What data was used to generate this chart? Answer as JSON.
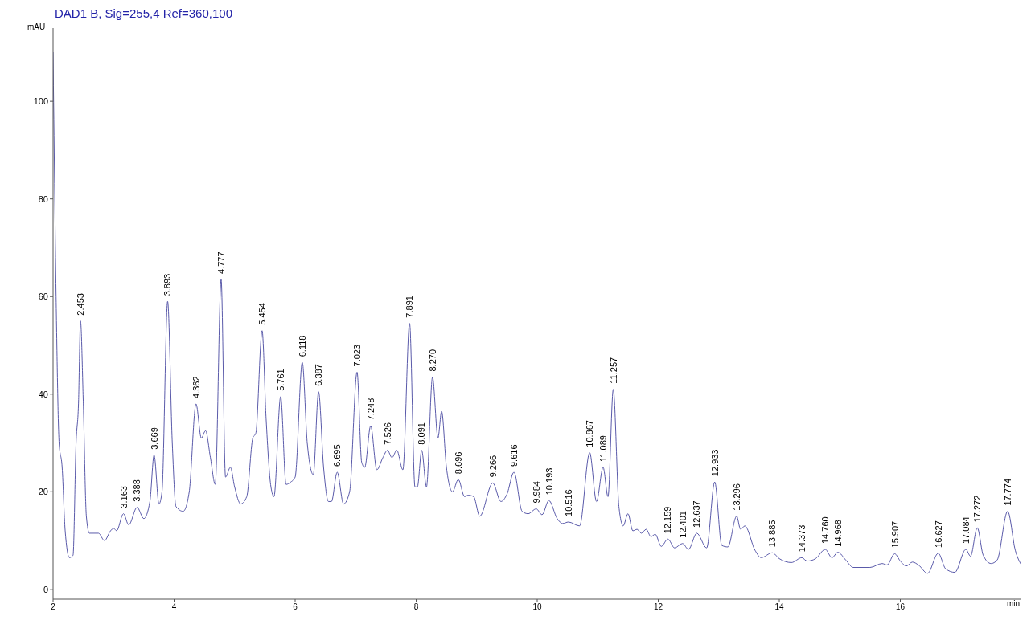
{
  "chart_data": {
    "type": "line",
    "title": "DAD1 B, Sig=255,4 Ref=360,100",
    "xlabel": "min",
    "ylabel": "mAU",
    "xlim": [
      2,
      18
    ],
    "xticks": [
      2,
      4,
      6,
      8,
      10,
      12,
      14,
      16
    ],
    "ylim": [
      -2,
      115
    ],
    "yticks": [
      0,
      20,
      40,
      60,
      80,
      100
    ],
    "grid": false,
    "legend": false,
    "marker": "none",
    "line_style": "solid",
    "x": [
      2.0,
      2.05,
      2.1,
      2.15,
      2.2,
      2.27,
      2.33,
      2.38,
      2.42,
      2.453,
      2.5,
      2.55,
      2.6,
      2.75,
      2.85,
      2.95,
      3.0,
      3.05,
      3.163,
      3.25,
      3.388,
      3.5,
      3.6,
      3.669,
      3.75,
      3.8,
      3.893,
      3.97,
      4.03,
      4.15,
      4.25,
      4.362,
      4.45,
      4.52,
      4.6,
      4.68,
      4.777,
      4.85,
      4.93,
      5.0,
      5.1,
      5.2,
      5.3,
      5.35,
      5.454,
      5.52,
      5.6,
      5.65,
      5.761,
      5.85,
      5.93,
      6.0,
      6.118,
      6.2,
      6.3,
      6.387,
      6.47,
      6.55,
      6.6,
      6.695,
      6.8,
      6.9,
      7.023,
      7.1,
      7.15,
      7.248,
      7.35,
      7.45,
      7.526,
      7.6,
      7.68,
      7.78,
      7.891,
      7.98,
      8.02,
      8.091,
      8.17,
      8.27,
      8.36,
      8.42,
      8.5,
      8.6,
      8.696,
      8.8,
      8.86,
      8.95,
      9.05,
      9.266,
      9.4,
      9.5,
      9.616,
      9.75,
      9.85,
      9.984,
      10.08,
      10.193,
      10.33,
      10.42,
      10.516,
      10.7,
      10.867,
      10.98,
      11.089,
      11.17,
      11.257,
      11.35,
      11.42,
      11.5,
      11.58,
      11.65,
      11.72,
      11.8,
      11.88,
      11.95,
      12.05,
      12.159,
      12.27,
      12.401,
      12.5,
      12.637,
      12.8,
      12.933,
      13.05,
      13.15,
      13.296,
      13.36,
      13.43,
      13.6,
      13.7,
      13.885,
      14.0,
      14.2,
      14.373,
      14.46,
      14.6,
      14.76,
      14.87,
      14.968,
      15.1,
      15.22,
      15.5,
      15.7,
      15.78,
      15.907,
      16.0,
      16.1,
      16.2,
      16.3,
      16.45,
      16.627,
      16.75,
      16.9,
      17.084,
      17.16,
      17.272,
      17.37,
      17.5,
      17.6,
      17.774,
      17.9,
      18.0
    ],
    "series": [
      {
        "color": "#5a5aaa",
        "values": [
          110,
          60,
          30,
          25,
          12,
          6.5,
          7,
          30,
          38,
          55,
          38,
          15,
          11.5,
          11.5,
          10,
          12,
          12.5,
          12,
          15.5,
          13.2,
          16.8,
          14.5,
          18,
          27.5,
          17.5,
          20,
          59,
          30,
          17,
          16,
          20,
          38,
          31,
          32.5,
          27,
          21.5,
          63.5,
          23,
          25,
          21,
          17.5,
          19,
          31,
          32,
          53,
          35,
          21,
          19,
          39.5,
          21.5,
          22,
          23,
          46.5,
          30,
          23.5,
          40.5,
          25,
          18,
          18,
          24,
          17.5,
          20,
          44.5,
          26,
          25,
          33.5,
          24.5,
          27,
          28.5,
          27,
          28.5,
          24.5,
          54.5,
          21,
          21,
          28.5,
          21,
          43.5,
          31,
          36.5,
          25,
          20,
          22.5,
          19,
          19.3,
          19,
          15,
          21.8,
          18,
          19.5,
          24,
          16,
          15.5,
          16.5,
          15.3,
          18.2,
          14.5,
          13.5,
          13.8,
          13,
          28,
          18,
          25,
          19,
          41,
          17,
          13,
          15.5,
          12,
          12.3,
          11.5,
          12.3,
          10.8,
          11.3,
          8.8,
          10.3,
          8.5,
          9.4,
          8.2,
          11.5,
          8.5,
          22,
          9,
          8.7,
          15,
          12.3,
          13,
          8,
          6.5,
          7.5,
          6.3,
          5.5,
          6.5,
          5.8,
          6.3,
          8.2,
          6.5,
          7.6,
          6,
          4.5,
          4.5,
          5.3,
          5,
          7.3,
          5.8,
          4.8,
          5.6,
          5,
          3.3,
          7.4,
          4.2,
          3.5,
          8.2,
          6.8,
          12.6,
          7,
          5.3,
          6,
          16,
          8,
          5
        ]
      }
    ],
    "annotations": [
      {
        "text": "2.453",
        "x": 2.453,
        "y": 55
      },
      {
        "text": "3.163",
        "x": 3.163,
        "y": 15.5
      },
      {
        "text": "3.388",
        "x": 3.388,
        "y": 16.8
      },
      {
        "text": "3.669",
        "x": 3.669,
        "y": 27.5
      },
      {
        "text": "3.893",
        "x": 3.893,
        "y": 59
      },
      {
        "text": "4.362",
        "x": 4.362,
        "y": 38
      },
      {
        "text": "4.777",
        "x": 4.777,
        "y": 63.5
      },
      {
        "text": "5.454",
        "x": 5.454,
        "y": 53
      },
      {
        "text": "5.761",
        "x": 5.761,
        "y": 39.5
      },
      {
        "text": "6.118",
        "x": 6.118,
        "y": 46.5
      },
      {
        "text": "6.387",
        "x": 6.387,
        "y": 40.5
      },
      {
        "text": "6.695",
        "x": 6.695,
        "y": 24
      },
      {
        "text": "7.023",
        "x": 7.023,
        "y": 44.5
      },
      {
        "text": "7.248",
        "x": 7.248,
        "y": 33.5
      },
      {
        "text": "7.526",
        "x": 7.526,
        "y": 28.5
      },
      {
        "text": "7.891",
        "x": 7.891,
        "y": 54.5
      },
      {
        "text": "8.091",
        "x": 8.091,
        "y": 28.5
      },
      {
        "text": "8.270",
        "x": 8.27,
        "y": 43.5
      },
      {
        "text": "8.696",
        "x": 8.696,
        "y": 22.5
      },
      {
        "text": "9.266",
        "x": 9.266,
        "y": 21.8
      },
      {
        "text": "9.616",
        "x": 9.616,
        "y": 24
      },
      {
        "text": "9.984",
        "x": 9.984,
        "y": 16.5
      },
      {
        "text": "10.193",
        "x": 10.193,
        "y": 18.2
      },
      {
        "text": "10.516",
        "x": 10.516,
        "y": 13.8
      },
      {
        "text": "10.867",
        "x": 10.867,
        "y": 28
      },
      {
        "text": "11.089",
        "x": 11.089,
        "y": 25
      },
      {
        "text": "11.257",
        "x": 11.257,
        "y": 41
      },
      {
        "text": "12.159",
        "x": 12.159,
        "y": 10.3
      },
      {
        "text": "12.401",
        "x": 12.401,
        "y": 9.4
      },
      {
        "text": "12.637",
        "x": 12.637,
        "y": 11.5
      },
      {
        "text": "12.933",
        "x": 12.933,
        "y": 22
      },
      {
        "text": "13.296",
        "x": 13.296,
        "y": 15
      },
      {
        "text": "13.885",
        "x": 13.885,
        "y": 7.5
      },
      {
        "text": "14.373",
        "x": 14.373,
        "y": 6.5
      },
      {
        "text": "14.760",
        "x": 14.76,
        "y": 8.2
      },
      {
        "text": "14.968",
        "x": 14.968,
        "y": 7.6
      },
      {
        "text": "15.907",
        "x": 15.907,
        "y": 7.3
      },
      {
        "text": "16.627",
        "x": 16.627,
        "y": 7.4
      },
      {
        "text": "17.084",
        "x": 17.084,
        "y": 8.2
      },
      {
        "text": "17.272",
        "x": 17.272,
        "y": 12.6
      },
      {
        "text": "17.774",
        "x": 17.774,
        "y": 16
      }
    ]
  }
}
